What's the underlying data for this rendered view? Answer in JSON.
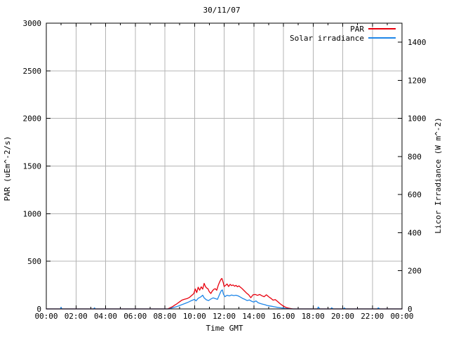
{
  "title": "30/11/07",
  "colors": {
    "par_line": "#e8000d",
    "solar_line": "#1e86e8",
    "grid": "#b4b4b4",
    "frame": "#000000",
    "background": "#ffffff",
    "text": "#000000"
  },
  "legend": {
    "position": "top-right-inside",
    "entries": [
      {
        "label": "PAR",
        "color": "#e8000d"
      },
      {
        "label": "Solar irradiance",
        "color": "#1e86e8"
      }
    ]
  },
  "chart_data": {
    "type": "line",
    "title": "30/11/07",
    "xlabel": "Time GMT",
    "ylabel_left": "PAR (uEm^-2/s)",
    "ylabel_right": "Licor Irradiance (W m^-2)",
    "grid": true,
    "x_unit": "hours GMT",
    "x_range_hours": [
      0,
      24
    ],
    "x_tick_hours": [
      0,
      2,
      4,
      6,
      8,
      10,
      12,
      14,
      16,
      18,
      20,
      22,
      24
    ],
    "x_tick_labels": [
      "00:00",
      "02:00",
      "04:00",
      "06:00",
      "08:00",
      "10:00",
      "12:00",
      "14:00",
      "16:00",
      "18:00",
      "20:00",
      "22:00",
      "00:00"
    ],
    "x_minor_tick_hours": [
      1,
      3,
      5,
      7,
      9,
      11,
      13,
      15,
      17,
      19,
      21,
      23
    ],
    "ylim_left": [
      0,
      3000
    ],
    "left_ticks": [
      0,
      500,
      1000,
      1500,
      2000,
      2500,
      3000
    ],
    "ylim_right": [
      0,
      1500
    ],
    "right_ticks": [
      0,
      200,
      400,
      600,
      800,
      1000,
      1200,
      1400
    ],
    "series": [
      {
        "name": "PAR",
        "axis": "left",
        "color": "#e8000d",
        "points": [
          [
            0,
            0
          ],
          [
            8.2,
            0
          ],
          [
            8.35,
            12
          ],
          [
            8.5,
            22
          ],
          [
            8.65,
            38
          ],
          [
            8.8,
            52
          ],
          [
            9.0,
            75
          ],
          [
            9.15,
            92
          ],
          [
            9.3,
            100
          ],
          [
            9.5,
            108
          ],
          [
            9.65,
            120
          ],
          [
            9.8,
            140
          ],
          [
            9.95,
            160
          ],
          [
            10.05,
            210
          ],
          [
            10.15,
            172
          ],
          [
            10.25,
            228
          ],
          [
            10.35,
            196
          ],
          [
            10.45,
            232
          ],
          [
            10.55,
            208
          ],
          [
            10.65,
            268
          ],
          [
            10.72,
            240
          ],
          [
            10.8,
            222
          ],
          [
            10.9,
            212
          ],
          [
            11.0,
            180
          ],
          [
            11.1,
            162
          ],
          [
            11.2,
            188
          ],
          [
            11.3,
            205
          ],
          [
            11.4,
            212
          ],
          [
            11.5,
            196
          ],
          [
            11.6,
            248
          ],
          [
            11.7,
            285
          ],
          [
            11.78,
            310
          ],
          [
            11.85,
            320
          ],
          [
            11.95,
            272
          ],
          [
            12.0,
            235
          ],
          [
            12.1,
            248
          ],
          [
            12.2,
            262
          ],
          [
            12.3,
            235
          ],
          [
            12.4,
            258
          ],
          [
            12.5,
            245
          ],
          [
            12.6,
            252
          ],
          [
            12.7,
            238
          ],
          [
            12.8,
            248
          ],
          [
            12.9,
            232
          ],
          [
            13.0,
            242
          ],
          [
            13.1,
            228
          ],
          [
            13.2,
            215
          ],
          [
            13.35,
            192
          ],
          [
            13.5,
            168
          ],
          [
            13.65,
            148
          ],
          [
            13.8,
            118
          ],
          [
            13.95,
            148
          ],
          [
            14.1,
            152
          ],
          [
            14.25,
            142
          ],
          [
            14.4,
            152
          ],
          [
            14.55,
            138
          ],
          [
            14.7,
            128
          ],
          [
            14.85,
            148
          ],
          [
            15.0,
            128
          ],
          [
            15.15,
            112
          ],
          [
            15.3,
            92
          ],
          [
            15.45,
            98
          ],
          [
            15.6,
            78
          ],
          [
            15.75,
            58
          ],
          [
            15.9,
            40
          ],
          [
            16.05,
            25
          ],
          [
            16.2,
            14
          ],
          [
            16.35,
            8
          ],
          [
            16.5,
            4
          ],
          [
            16.65,
            0
          ],
          [
            24,
            0
          ]
        ]
      },
      {
        "name": "Solar irradiance",
        "axis": "right",
        "color": "#1e86e8",
        "points": [
          [
            0,
            0
          ],
          [
            0.95,
            0
          ],
          [
            1.0,
            8
          ],
          [
            1.05,
            0
          ],
          [
            3.2,
            0
          ],
          [
            3.25,
            6
          ],
          [
            3.3,
            0
          ],
          [
            8.3,
            0
          ],
          [
            8.5,
            6
          ],
          [
            8.8,
            12
          ],
          [
            9.0,
            18
          ],
          [
            9.2,
            24
          ],
          [
            9.4,
            30
          ],
          [
            9.6,
            36
          ],
          [
            9.8,
            44
          ],
          [
            10.0,
            50
          ],
          [
            10.1,
            42
          ],
          [
            10.25,
            56
          ],
          [
            10.4,
            62
          ],
          [
            10.55,
            72
          ],
          [
            10.65,
            58
          ],
          [
            10.8,
            48
          ],
          [
            10.95,
            44
          ],
          [
            11.1,
            52
          ],
          [
            11.25,
            58
          ],
          [
            11.4,
            54
          ],
          [
            11.55,
            50
          ],
          [
            11.7,
            78
          ],
          [
            11.8,
            95
          ],
          [
            11.88,
            100
          ],
          [
            11.95,
            78
          ],
          [
            12.05,
            64
          ],
          [
            12.2,
            72
          ],
          [
            12.35,
            68
          ],
          [
            12.5,
            73
          ],
          [
            12.65,
            70
          ],
          [
            12.8,
            72
          ],
          [
            12.95,
            68
          ],
          [
            13.1,
            62
          ],
          [
            13.25,
            55
          ],
          [
            13.4,
            50
          ],
          [
            13.55,
            44
          ],
          [
            13.7,
            47
          ],
          [
            13.85,
            40
          ],
          [
            14.0,
            36
          ],
          [
            14.15,
            42
          ],
          [
            14.3,
            32
          ],
          [
            14.45,
            28
          ],
          [
            14.6,
            25
          ],
          [
            14.75,
            22
          ],
          [
            14.9,
            18
          ],
          [
            15.05,
            16
          ],
          [
            15.2,
            14
          ],
          [
            15.4,
            11
          ],
          [
            15.6,
            8
          ],
          [
            15.8,
            6
          ],
          [
            16.0,
            4
          ],
          [
            16.2,
            2
          ],
          [
            16.5,
            0
          ],
          [
            18.3,
            0
          ],
          [
            18.35,
            10
          ],
          [
            18.45,
            0
          ],
          [
            19.2,
            0
          ],
          [
            19.25,
            6
          ],
          [
            19.35,
            0
          ],
          [
            20.05,
            0
          ],
          [
            20.1,
            5
          ],
          [
            20.2,
            0
          ],
          [
            22.35,
            0
          ],
          [
            22.4,
            6
          ],
          [
            22.5,
            0
          ],
          [
            24,
            0
          ]
        ]
      }
    ]
  }
}
